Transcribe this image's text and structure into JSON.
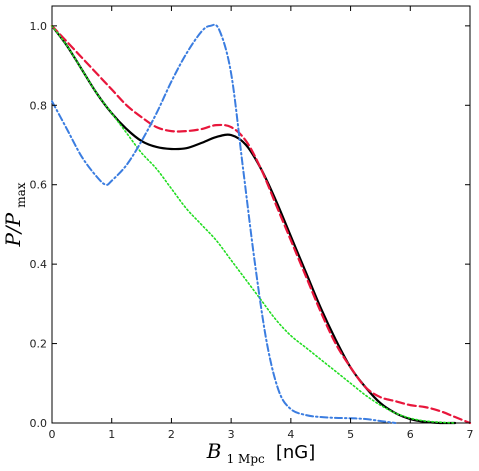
{
  "chart_data": {
    "type": "line",
    "xlabel": "B",
    "xlabel_sub": "1 Mpc",
    "xlabel_unit": "[nG]",
    "ylabel": "P/P",
    "ylabel_sub": "max",
    "xlim": [
      0,
      7
    ],
    "ylim": [
      0,
      1.05
    ],
    "xticks": [
      "0",
      "1",
      "2",
      "3",
      "4",
      "5",
      "6",
      "7"
    ],
    "yticks": [
      "0.0",
      "0.2",
      "0.4",
      "0.6",
      "0.8",
      "1.0"
    ],
    "grid": false,
    "legend": "none",
    "series": [
      {
        "style": "solid",
        "color": "#000000",
        "x": [
          0,
          0.25,
          0.5,
          0.75,
          1.0,
          1.25,
          1.5,
          1.75,
          2.0,
          2.25,
          2.5,
          2.75,
          3.0,
          3.25,
          3.5,
          3.75,
          4.0,
          4.25,
          4.5,
          4.75,
          5.0,
          5.25,
          5.5,
          5.75,
          6.0,
          6.25,
          6.5,
          6.75
        ],
        "y": [
          1.0,
          0.95,
          0.89,
          0.83,
          0.78,
          0.74,
          0.71,
          0.695,
          0.69,
          0.692,
          0.705,
          0.72,
          0.725,
          0.7,
          0.64,
          0.56,
          0.47,
          0.38,
          0.29,
          0.21,
          0.14,
          0.09,
          0.05,
          0.025,
          0.01,
          0.003,
          0.0,
          0.0
        ]
      },
      {
        "style": "dashed",
        "color": "#e8163b",
        "x": [
          0,
          0.25,
          0.5,
          0.75,
          1.0,
          1.25,
          1.5,
          1.75,
          2.0,
          2.25,
          2.5,
          2.75,
          3.0,
          3.25,
          3.5,
          3.75,
          4.0,
          4.25,
          4.5,
          4.75,
          5.0,
          5.25,
          5.5,
          5.75,
          6.0,
          6.25,
          6.5,
          6.75,
          7.0
        ],
        "y": [
          1.0,
          0.96,
          0.92,
          0.88,
          0.84,
          0.8,
          0.77,
          0.745,
          0.735,
          0.735,
          0.74,
          0.75,
          0.745,
          0.71,
          0.64,
          0.55,
          0.46,
          0.37,
          0.28,
          0.2,
          0.14,
          0.09,
          0.065,
          0.055,
          0.045,
          0.04,
          0.03,
          0.015,
          0.0
        ]
      },
      {
        "style": "dotted",
        "color": "#22dd22",
        "x": [
          0,
          0.25,
          0.5,
          0.75,
          1.0,
          1.25,
          1.5,
          1.75,
          2.0,
          2.25,
          2.5,
          2.75,
          3.0,
          3.25,
          3.5,
          3.75,
          4.0,
          4.25,
          4.5,
          4.75,
          5.0,
          5.25,
          5.5,
          5.75,
          6.0,
          6.25,
          6.5,
          6.75
        ],
        "y": [
          1.0,
          0.95,
          0.89,
          0.83,
          0.78,
          0.73,
          0.68,
          0.64,
          0.59,
          0.54,
          0.5,
          0.46,
          0.41,
          0.36,
          0.31,
          0.26,
          0.22,
          0.19,
          0.16,
          0.13,
          0.1,
          0.07,
          0.045,
          0.025,
          0.012,
          0.005,
          0.002,
          0.0
        ]
      },
      {
        "style": "dashdot",
        "color": "#3b7de0",
        "x": [
          0,
          0.25,
          0.5,
          0.75,
          0.9,
          1.0,
          1.25,
          1.5,
          1.75,
          2.0,
          2.25,
          2.5,
          2.65,
          2.8,
          3.0,
          3.2,
          3.4,
          3.6,
          3.8,
          4.0,
          4.25,
          4.5,
          4.75,
          5.0,
          5.25,
          5.5,
          5.75
        ],
        "y": [
          0.81,
          0.74,
          0.67,
          0.62,
          0.6,
          0.61,
          0.65,
          0.71,
          0.78,
          0.86,
          0.93,
          0.985,
          1.0,
          0.99,
          0.88,
          0.64,
          0.4,
          0.2,
          0.08,
          0.035,
          0.02,
          0.015,
          0.013,
          0.012,
          0.01,
          0.005,
          0.0
        ]
      }
    ]
  }
}
